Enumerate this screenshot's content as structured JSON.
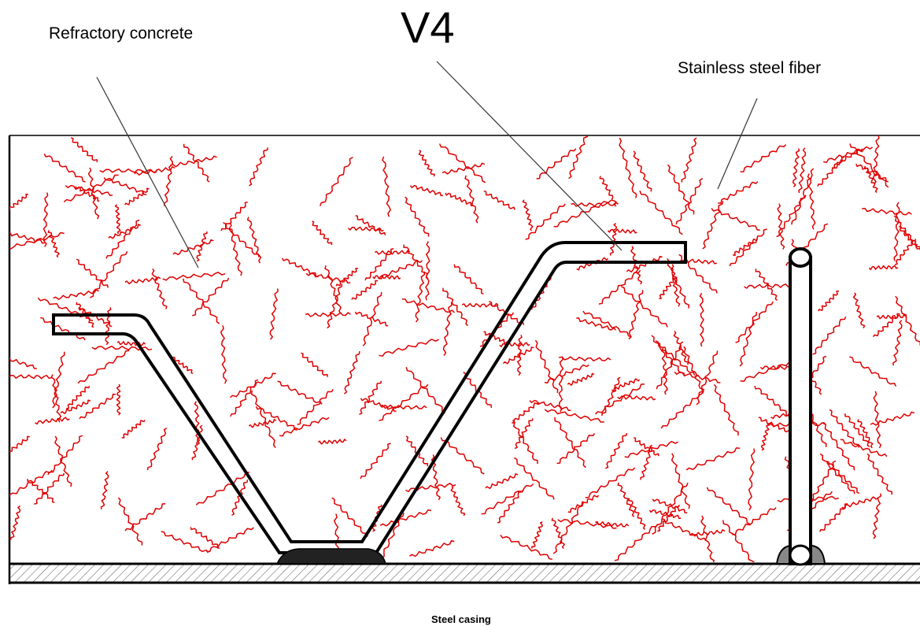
{
  "labels": {
    "refractory_concrete": "Refractory concrete",
    "anchor_type": "V4",
    "stainless_steel_fiber": "Stainless steel fiber",
    "steel_casing": "Steel casing"
  },
  "colors": {
    "fiber": "#e00000",
    "outline": "#000000",
    "background": "#ffffff",
    "weld": "#888888"
  },
  "fiber_count": 300
}
